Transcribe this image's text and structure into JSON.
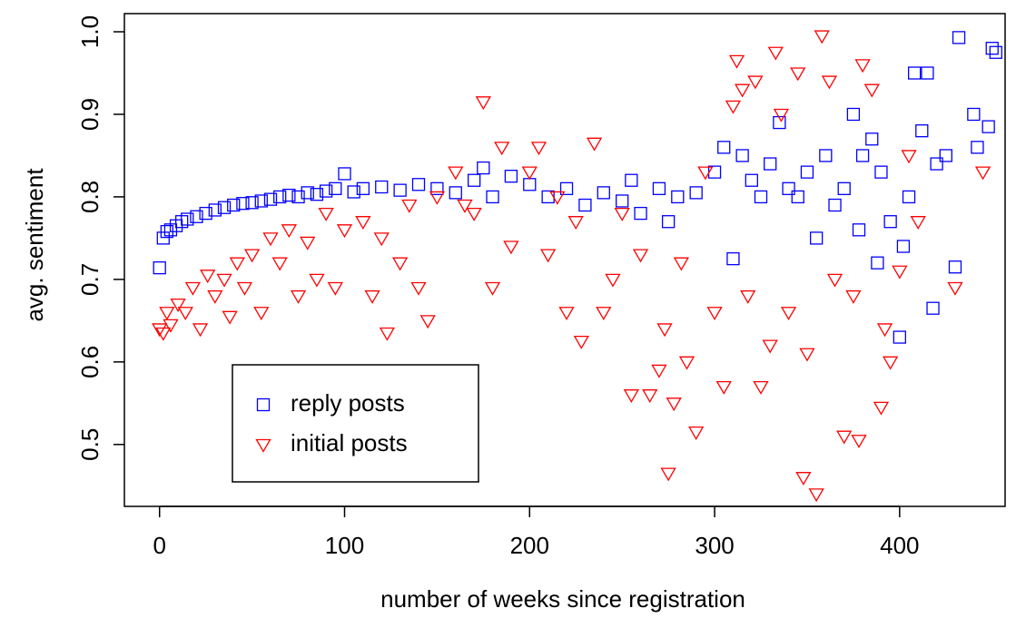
{
  "chart_data": {
    "type": "scatter",
    "xlabel": "number of weeks since registration",
    "ylabel": "avg. sentiment",
    "xlim": [
      -19,
      457
    ],
    "ylim": [
      0.425,
      1.022
    ],
    "xticks": [
      0,
      100,
      200,
      300,
      400
    ],
    "yticks": [
      0.5,
      0.6,
      0.7,
      0.8,
      0.9,
      {
        "value": 1,
        "label": "1.0"
      }
    ],
    "grid": false,
    "legend": "bottom-left",
    "series": [
      {
        "name": "reply posts",
        "color": "#0000ff",
        "marker": "square",
        "x": [
          0,
          2,
          4,
          6,
          9,
          12,
          15,
          20,
          25,
          30,
          35,
          40,
          45,
          50,
          55,
          60,
          65,
          70,
          75,
          80,
          85,
          90,
          95,
          100,
          105,
          110,
          120,
          130,
          140,
          150,
          160,
          170,
          175,
          180,
          190,
          200,
          210,
          220,
          230,
          240,
          250,
          255,
          260,
          270,
          275,
          280,
          290,
          300,
          305,
          310,
          315,
          320,
          325,
          330,
          335,
          340,
          345,
          350,
          355,
          360,
          365,
          370,
          375,
          378,
          380,
          385,
          388,
          390,
          395,
          400,
          402,
          405,
          408,
          412,
          415,
          418,
          420,
          425,
          430,
          432,
          440,
          442,
          448,
          450,
          452
        ],
        "values": [
          0.714,
          0.75,
          0.758,
          0.76,
          0.765,
          0.77,
          0.773,
          0.776,
          0.78,
          0.784,
          0.787,
          0.79,
          0.792,
          0.793,
          0.795,
          0.797,
          0.8,
          0.802,
          0.8,
          0.805,
          0.803,
          0.807,
          0.81,
          0.828,
          0.806,
          0.81,
          0.812,
          0.808,
          0.815,
          0.81,
          0.805,
          0.82,
          0.835,
          0.8,
          0.825,
          0.815,
          0.8,
          0.81,
          0.79,
          0.805,
          0.795,
          0.82,
          0.78,
          0.81,
          0.77,
          0.8,
          0.805,
          0.83,
          0.86,
          0.725,
          0.85,
          0.82,
          0.8,
          0.84,
          0.89,
          0.81,
          0.8,
          0.83,
          0.75,
          0.85,
          0.79,
          0.81,
          0.9,
          0.76,
          0.85,
          0.87,
          0.72,
          0.83,
          0.77,
          0.63,
          0.74,
          0.8,
          0.95,
          0.88,
          0.95,
          0.665,
          0.84,
          0.85,
          0.715,
          0.993,
          0.9,
          0.86,
          0.885,
          0.98,
          0.975
        ]
      },
      {
        "name": "initial posts",
        "color": "#ff0000",
        "marker": "triangle-down",
        "x": [
          0,
          2,
          4,
          6,
          10,
          14,
          18,
          22,
          26,
          30,
          35,
          38,
          42,
          46,
          50,
          55,
          60,
          65,
          70,
          75,
          80,
          85,
          90,
          95,
          100,
          110,
          115,
          120,
          123,
          130,
          135,
          140,
          145,
          150,
          160,
          165,
          170,
          175,
          180,
          185,
          190,
          200,
          205,
          210,
          215,
          220,
          225,
          228,
          235,
          240,
          245,
          250,
          255,
          260,
          265,
          270,
          273,
          275,
          278,
          282,
          285,
          290,
          295,
          300,
          305,
          310,
          312,
          315,
          318,
          322,
          325,
          330,
          333,
          336,
          340,
          345,
          348,
          350,
          355,
          358,
          362,
          365,
          370,
          375,
          378,
          380,
          385,
          390,
          392,
          395,
          400,
          405,
          410,
          430,
          445
        ],
        "values": [
          0.64,
          0.635,
          0.66,
          0.645,
          0.67,
          0.66,
          0.69,
          0.64,
          0.705,
          0.68,
          0.7,
          0.655,
          0.72,
          0.69,
          0.73,
          0.66,
          0.75,
          0.72,
          0.76,
          0.68,
          0.745,
          0.7,
          0.78,
          0.69,
          0.76,
          0.77,
          0.68,
          0.75,
          0.635,
          0.72,
          0.79,
          0.69,
          0.65,
          0.8,
          0.83,
          0.79,
          0.78,
          0.915,
          0.69,
          0.86,
          0.74,
          0.83,
          0.86,
          0.73,
          0.8,
          0.66,
          0.77,
          0.625,
          0.865,
          0.66,
          0.7,
          0.78,
          0.56,
          0.73,
          0.56,
          0.59,
          0.64,
          0.465,
          0.55,
          0.72,
          0.6,
          0.515,
          0.83,
          0.66,
          0.57,
          0.91,
          0.965,
          0.93,
          0.68,
          0.94,
          0.57,
          0.62,
          0.975,
          0.9,
          0.66,
          0.95,
          0.46,
          0.61,
          0.44,
          0.995,
          0.94,
          0.7,
          0.51,
          0.68,
          0.505,
          0.96,
          0.93,
          0.545,
          0.64,
          0.6,
          0.71,
          0.85,
          0.77,
          0.69,
          0.83
        ]
      }
    ]
  }
}
